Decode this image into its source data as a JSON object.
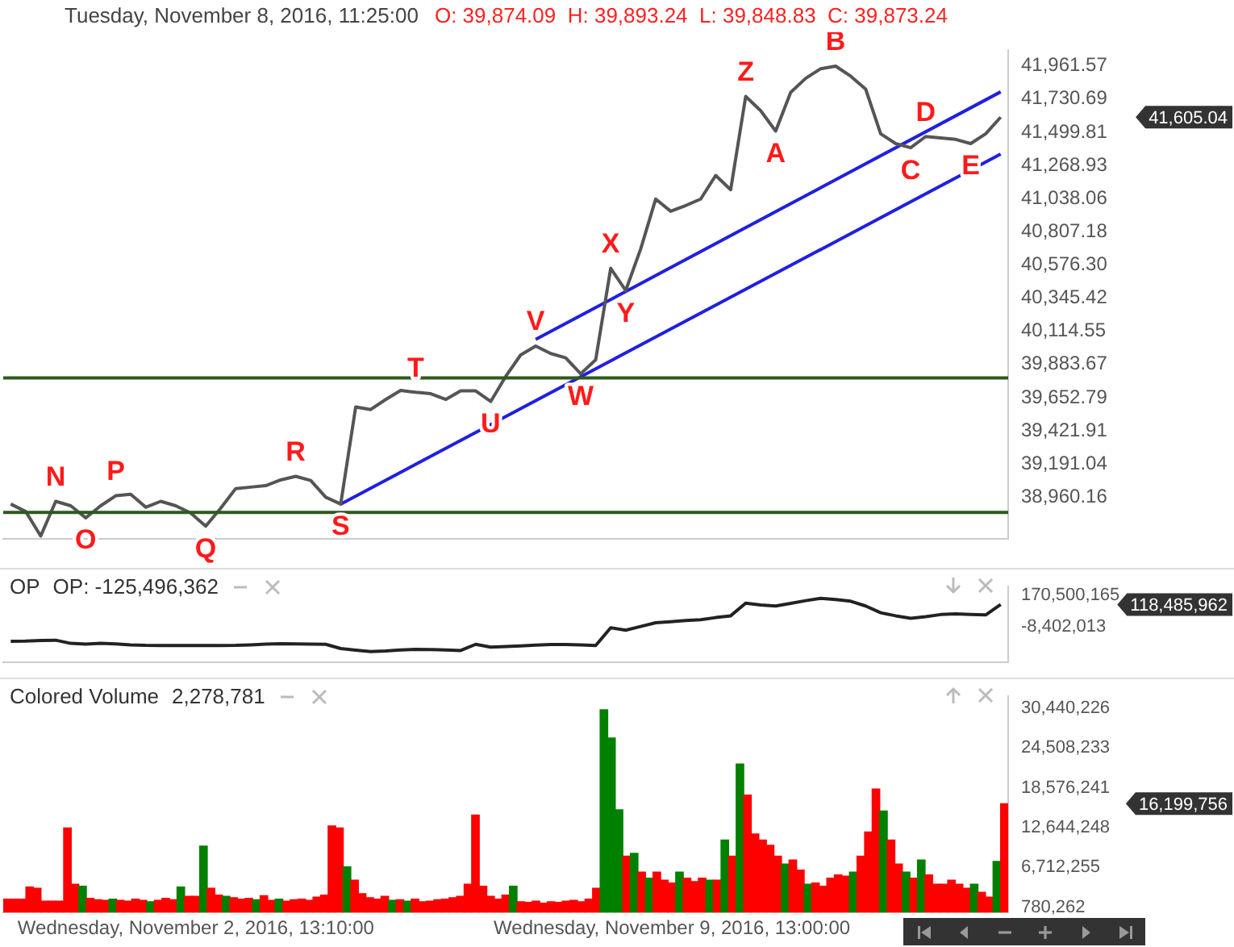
{
  "chart_data": [
    {
      "type": "line",
      "title": "Tuesday, November 8, 2016, 11:25:00",
      "subtitle": "O: 39,874.09  H: 39,893.24  L: 39,848.83  C: 39,873.24",
      "tick_labels": "y",
      "grid": false,
      "categories": [
        null,
        null,
        null,
        null,
        null,
        null,
        null,
        null,
        null,
        null,
        null,
        null,
        null,
        null,
        null,
        null,
        null,
        null,
        null,
        null,
        null,
        null,
        null,
        null,
        null,
        null,
        null,
        null,
        null,
        null,
        null,
        null,
        null,
        null,
        null,
        null,
        null,
        null,
        null,
        null,
        null,
        null,
        null,
        null,
        null,
        null,
        null,
        null,
        null,
        null,
        null,
        null,
        null,
        null,
        null,
        null,
        null,
        null,
        null,
        null,
        null,
        null,
        null,
        null,
        null,
        null,
        null
      ],
      "series": [
        {
          "color": "#555555",
          "values": [
            38912,
            38860,
            38690,
            38931,
            38900,
            38816,
            38900,
            38970,
            38980,
            38890,
            38931,
            38900,
            38850,
            38758,
            38883,
            39020,
            39030,
            39040,
            39080,
            39105,
            39076,
            38960,
            38912,
            39588,
            39570,
            39640,
            39703,
            39690,
            39680,
            39640,
            39700,
            39700,
            39626,
            39800,
            39950,
            40012,
            39960,
            39930,
            39819,
            39916,
            40553,
            40398,
            40688,
            41035,
            40950,
            40990,
            41035,
            41199,
            41100,
            41749,
            41650,
            41508,
            41778,
            41875,
            41942,
            41960,
            41890,
            41800,
            41489,
            41421,
            41392,
            41470,
            41460,
            41450,
            41421,
            41489,
            41605.04
          ],
          "value_labels": [
            null,
            null,
            null,
            "N",
            null,
            "O",
            null,
            "P",
            null,
            null,
            null,
            null,
            null,
            "Q",
            null,
            null,
            null,
            null,
            null,
            "R",
            null,
            null,
            "S",
            null,
            null,
            null,
            null,
            "T",
            null,
            null,
            null,
            null,
            "U",
            null,
            null,
            "V",
            null,
            null,
            "W",
            null,
            "X",
            "Y",
            null,
            null,
            null,
            null,
            null,
            null,
            null,
            "Z",
            null,
            "A",
            null,
            null,
            null,
            "B",
            null,
            null,
            null,
            null,
            "C",
            "D",
            null,
            null,
            "E",
            null,
            null
          ]
        },
        {
          "type": "line",
          "color": "#2020e0",
          "values": [
            null,
            null,
            null,
            null,
            null,
            null,
            null,
            null,
            null,
            null,
            null,
            null,
            null,
            null,
            null,
            null,
            null,
            null,
            null,
            null,
            null,
            null,
            38912,
            null,
            null,
            null,
            null,
            null,
            null,
            null,
            null,
            null,
            null,
            null,
            null,
            null,
            null,
            null,
            null,
            null,
            null,
            null,
            null,
            null,
            null,
            null,
            null,
            null,
            null,
            null,
            null,
            null,
            null,
            null,
            null,
            null,
            null,
            null,
            null,
            null,
            null,
            null,
            null,
            null,
            null,
            null,
            41348
          ]
        },
        {
          "type": "line",
          "color": "#2020e0",
          "values": [
            null,
            null,
            null,
            null,
            null,
            null,
            null,
            null,
            null,
            null,
            null,
            null,
            null,
            null,
            null,
            null,
            null,
            null,
            null,
            null,
            null,
            null,
            null,
            null,
            null,
            null,
            null,
            null,
            null,
            null,
            null,
            null,
            null,
            null,
            null,
            40058,
            null,
            null,
            null,
            null,
            null,
            null,
            null,
            null,
            null,
            null,
            null,
            null,
            null,
            null,
            null,
            null,
            null,
            null,
            null,
            null,
            null,
            null,
            null,
            null,
            null,
            null,
            null,
            null,
            null,
            null,
            41781
          ]
        }
      ],
      "ylim": [
        38670,
        42070
      ],
      "yticks": [
        {
          "value": 38960.16,
          "label": "38,960.16"
        },
        {
          "value": 39191.04,
          "label": "39,191.04"
        },
        {
          "value": 39421.91,
          "label": "39,421.91"
        },
        {
          "value": 39652.79,
          "label": "39,652.79"
        },
        {
          "value": 39883.67,
          "label": "39,883.67"
        },
        {
          "value": 40114.55,
          "label": "40,114.55"
        },
        {
          "value": 40345.42,
          "label": "40,345.42"
        },
        {
          "value": 40576.3,
          "label": "40,576.30"
        },
        {
          "value": 40807.18,
          "label": "40,807.18"
        },
        {
          "value": 41038.06,
          "label": "41,038.06"
        },
        {
          "value": 41268.93,
          "label": "41,268.93"
        },
        {
          "value": 41499.81,
          "label": "41,499.81"
        },
        {
          "value": 41730.69,
          "label": "41,730.69"
        },
        {
          "value": 41961.57,
          "label": "41,961.57"
        }
      ],
      "ref_lines": [
        {
          "axis": "y",
          "value": 39790,
          "color": "#2d5a1b"
        },
        {
          "axis": "y",
          "value": 38854,
          "color": "#2d5a1b"
        }
      ],
      "annotations": [
        "41,605.04"
      ]
    },
    {
      "type": "line",
      "title": "OP",
      "subtitle": "OP: -125,496,362",
      "tick_labels": "y",
      "grid": false,
      "categories": [
        null,
        null,
        null,
        null,
        null,
        null,
        null,
        null,
        null,
        null,
        null,
        null,
        null,
        null,
        null,
        null,
        null,
        null,
        null,
        null,
        null,
        null,
        null,
        null,
        null,
        null,
        null,
        null,
        null,
        null,
        null,
        null,
        null,
        null,
        null,
        null,
        null,
        null,
        null,
        null,
        null,
        null,
        null,
        null,
        null,
        null,
        null,
        null,
        null,
        null,
        null,
        null,
        null,
        null,
        null,
        null,
        null,
        null,
        null,
        null,
        null,
        null,
        null,
        null,
        null,
        null,
        null
      ],
      "series": [
        {
          "color": "#222222",
          "values": [
            -88000000,
            -87000000,
            -84000000,
            -82000000,
            -100000000,
            -104000000,
            -99000000,
            -103000000,
            -108000000,
            -111000000,
            -112000000,
            -112000000,
            -112000000,
            -112000000,
            -112000000,
            -111000000,
            -108000000,
            -104000000,
            -102000000,
            -103000000,
            -104000000,
            -105000000,
            -129000000,
            -138000000,
            -146000000,
            -143000000,
            -137000000,
            -133000000,
            -135000000,
            -137000000,
            -140000000,
            -105000000,
            -121000000,
            -118000000,
            -114000000,
            -110000000,
            -106000000,
            -106000000,
            -109000000,
            -112000000,
            -12000000,
            -26000000,
            -5000000,
            16000000,
            22000000,
            28000000,
            33000000,
            45000000,
            55000000,
            126000000,
            116000000,
            110000000,
            125000000,
            140000000,
            153000000,
            146000000,
            137000000,
            110000000,
            72000000,
            55000000,
            41000000,
            50000000,
            62000000,
            66000000,
            63000000,
            60000000,
            118485962
          ],
          "value_labels": [
            null,
            null,
            null,
            null,
            null,
            null,
            null,
            null,
            null,
            null,
            null,
            null,
            null,
            null,
            null,
            null,
            null,
            null,
            null,
            null,
            null,
            null,
            null,
            null,
            null,
            null,
            null,
            null,
            null,
            null,
            null,
            null,
            null,
            null,
            null,
            null,
            null,
            null,
            null,
            null,
            null,
            null,
            null,
            null,
            null,
            null,
            null,
            null,
            null,
            null,
            null,
            null,
            null,
            null,
            null,
            null,
            null,
            null,
            null,
            null,
            null,
            null,
            null,
            null,
            null,
            null,
            null
          ]
        }
      ],
      "annotations": [
        "118,485,962"
      ],
      "ylim": [
        -205000000,
        219000000
      ],
      "yticks": [
        {
          "value": -8402013,
          "label": "-8,402,013"
        },
        {
          "value": 170500165,
          "label": "170,500,165"
        }
      ]
    },
    {
      "type": "bar",
      "title": "Colored Volume",
      "subtitle": "2,278,781",
      "grid": false,
      "categories": [
        null,
        null,
        null,
        null,
        null,
        null,
        null,
        null,
        null,
        null,
        null,
        null,
        null,
        null,
        null,
        null,
        null,
        null,
        null,
        null,
        null,
        null,
        null,
        null,
        null,
        "Wednesday, November 2, 2016, 13:10:00",
        null,
        null,
        null,
        null,
        null,
        null,
        null,
        null,
        null,
        null,
        null,
        null,
        null,
        null,
        null,
        null,
        null,
        null,
        null,
        null,
        null,
        null,
        null,
        null,
        null,
        null,
        null,
        null,
        null,
        null,
        null,
        null,
        null,
        null,
        null,
        null,
        null,
        null,
        null,
        null,
        null,
        null,
        null,
        null,
        null,
        null,
        null,
        null,
        null,
        null,
        null,
        null,
        null,
        null,
        null,
        null,
        null,
        null,
        null,
        null,
        null,
        null,
        "Wednesday, November 9, 2016, 13:00:00",
        null,
        null,
        null,
        null,
        null,
        null,
        null,
        null,
        null,
        null,
        null,
        null,
        null,
        null,
        null,
        null,
        null,
        null,
        null,
        null,
        null,
        null,
        null,
        null,
        null,
        null,
        null,
        null,
        null,
        null,
        null,
        null,
        null,
        null,
        null,
        null,
        null,
        null,
        null,
        null,
        null,
        null,
        null,
        null
      ],
      "series": [
        {
          "values": [
            2000000,
            2000000,
            2000000,
            3800000,
            3600000,
            1700000,
            1700000,
            1700000,
            12600000,
            4200000,
            3900000,
            2100000,
            1900000,
            1800000,
            2000000,
            1800000,
            1700000,
            2000000,
            1800000,
            1600000,
            1800000,
            2100000,
            1900000,
            3800000,
            2400000,
            2400000,
            9900000,
            3600000,
            2600000,
            2400000,
            2200000,
            2000000,
            2100000,
            1900000,
            2500000,
            1800000,
            2000000,
            1700000,
            1900000,
            2000000,
            1800000,
            2300000,
            2600000,
            12900000,
            12600000,
            6800000,
            4800000,
            2800000,
            2200000,
            2000000,
            2400000,
            1800000,
            1900000,
            1700000,
            2000000,
            1600000,
            1700000,
            1900000,
            2000000,
            2200000,
            2400000,
            4200000,
            14500000,
            3900000,
            2400000,
            2000000,
            2600000,
            3900000,
            1600000,
            1500000,
            1700000,
            1400000,
            1600000,
            1500000,
            1700000,
            1800000,
            1600000,
            2000000,
            3600000,
            30200000,
            26000000,
            15300000,
            8400000,
            8800000,
            6000000,
            5100000,
            6000000,
            4800000,
            4400000,
            6000000,
            5100000,
            4600000,
            5100000,
            4800000,
            4800000,
            10800000,
            8400000,
            22100000,
            17500000,
            11700000,
            10800000,
            10000000,
            8400000,
            7200000,
            7800000,
            6300000,
            4200000,
            4400000,
            3900000,
            5100000,
            5600000,
            5400000,
            6000000,
            8400000,
            12000000,
            18400000,
            15100000,
            10800000,
            7200000,
            6000000,
            5100000,
            7800000,
            5600000,
            4200000,
            4200000,
            4800000,
            4200000,
            3600000,
            4200000,
            3000000,
            2300000,
            7600000,
            16199756
          ],
          "colors": [
            "#ff0000",
            "#ff0000",
            "#ff0000",
            "#ff0000",
            "#ff0000",
            "#ff0000",
            "#ff0000",
            "#ff0000",
            "#ff0000",
            "#ff0000",
            "#008000",
            "#ff0000",
            "#ff0000",
            "#ff0000",
            "#008000",
            "#ff0000",
            "#ff0000",
            "#ff0000",
            "#ff0000",
            "#008000",
            "#ff0000",
            "#ff0000",
            "#ff0000",
            "#008000",
            "#ff0000",
            "#ff0000",
            "#008000",
            "#ff0000",
            "#ff0000",
            "#008000",
            "#ff0000",
            "#ff0000",
            "#ff0000",
            "#008000",
            "#ff0000",
            "#ff0000",
            "#008000",
            "#ff0000",
            "#ff0000",
            "#ff0000",
            "#ff0000",
            "#ff0000",
            "#ff0000",
            "#ff0000",
            "#ff0000",
            "#008000",
            "#ff0000",
            "#ff0000",
            "#ff0000",
            "#ff0000",
            "#ff0000",
            "#008000",
            "#ff0000",
            "#008000",
            "#ff0000",
            "#ff0000",
            "#ff0000",
            "#ff0000",
            "#ff0000",
            "#ff0000",
            "#ff0000",
            "#ff0000",
            "#ff0000",
            "#ff0000",
            "#ff0000",
            "#ff0000",
            "#ff0000",
            "#008000",
            "#ff0000",
            "#ff0000",
            "#ff0000",
            "#ff0000",
            "#ff0000",
            "#ff0000",
            "#ff0000",
            "#ff0000",
            "#ff0000",
            "#ff0000",
            "#ff0000",
            "#008000",
            "#008000",
            "#008000",
            "#ff0000",
            "#008000",
            "#ff0000",
            "#008000",
            "#ff0000",
            "#ff0000",
            "#ff0000",
            "#008000",
            "#ff0000",
            "#ff0000",
            "#ff0000",
            "#008000",
            "#ff0000",
            "#008000",
            "#ff0000",
            "#008000",
            "#ff0000",
            "#ff0000",
            "#ff0000",
            "#ff0000",
            "#ff0000",
            "#008000",
            "#ff0000",
            "#ff0000",
            "#008000",
            "#ff0000",
            "#ff0000",
            "#ff0000",
            "#ff0000",
            "#ff0000",
            "#008000",
            "#ff0000",
            "#ff0000",
            "#ff0000",
            "#008000",
            "#ff0000",
            "#ff0000",
            "#008000",
            "#ff0000",
            "#008000",
            "#ff0000",
            "#ff0000",
            "#ff0000",
            "#ff0000",
            "#ff0000",
            "#ff0000",
            "#008000",
            "#ff0000",
            "#ff0000",
            "#008000",
            "#ff0000"
          ],
          "value_labels": [
            null,
            null,
            null,
            null,
            null,
            null,
            null,
            null,
            null,
            null,
            null,
            null,
            null,
            null,
            null,
            null,
            null,
            null,
            null,
            null,
            null,
            null,
            null,
            null,
            null,
            null,
            null,
            null,
            null,
            null,
            null,
            null,
            null,
            null,
            null,
            null,
            null,
            null,
            null,
            null,
            null,
            null,
            null,
            null,
            null,
            null,
            null,
            null,
            null,
            null,
            null,
            null,
            null,
            null,
            null,
            null,
            null,
            null,
            null,
            null,
            null,
            null,
            null,
            null,
            null,
            null,
            null,
            null,
            null,
            null,
            null,
            null,
            null,
            null,
            null,
            null,
            null,
            null,
            null,
            null,
            null,
            null,
            null,
            null,
            null,
            null,
            null,
            null,
            null,
            null,
            null,
            null,
            null,
            null,
            null,
            null,
            null,
            null,
            null,
            null,
            null,
            null,
            null,
            null,
            null,
            null,
            null,
            null,
            null,
            null,
            null,
            null,
            null,
            null,
            null,
            null,
            null,
            null,
            null,
            null,
            null,
            null,
            null,
            null,
            null,
            null,
            null,
            null,
            null,
            null,
            null,
            null,
            null
          ]
        }
      ],
      "annotations": [
        "16,199,756"
      ],
      "ylim": [
        0,
        32200000
      ],
      "yticks": [
        {
          "value": 780262,
          "label": "780,262"
        },
        {
          "value": 6712255,
          "label": "6,712,255"
        },
        {
          "value": 12644248,
          "label": "12,644,248"
        },
        {
          "value": 18576241,
          "label": "18,576,241"
        },
        {
          "value": 24508233,
          "label": "24,508,233"
        },
        {
          "value": 30440226,
          "label": "30,440,226"
        }
      ]
    }
  ]
}
